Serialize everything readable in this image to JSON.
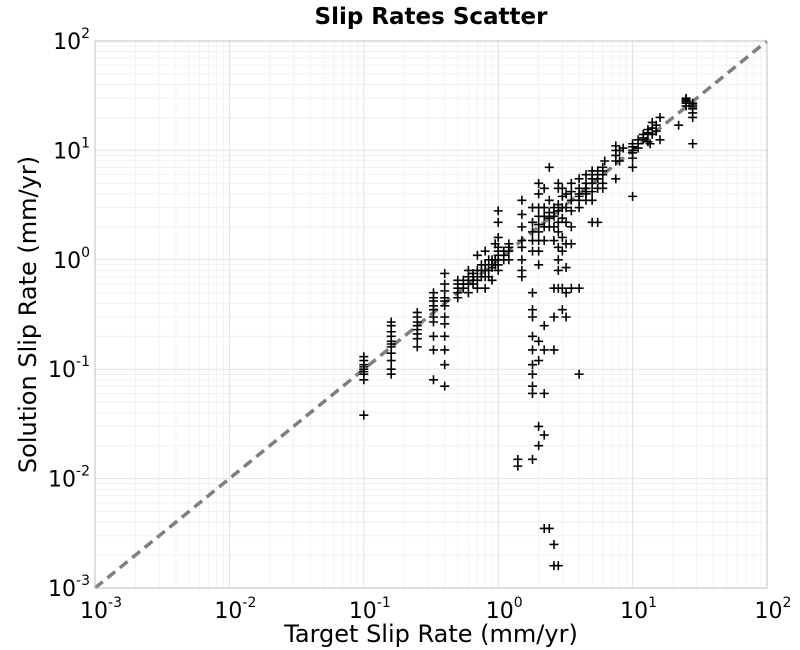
{
  "chart_data": {
    "type": "scatter",
    "title": "Slip Rates Scatter",
    "xlabel": "Target Slip Rate (mm/yr)",
    "ylabel": "Solution Slip Rate (mm/yr)",
    "xscale": "log",
    "yscale": "log",
    "xlim": [
      0.001,
      100
    ],
    "ylim": [
      0.001,
      100
    ],
    "grid": true,
    "marker": "+",
    "marker_color": "#000000",
    "reference_line": {
      "from": [
        0.001,
        0.001
      ],
      "to": [
        100,
        100
      ],
      "style": "dashed",
      "color": "#7f7f7f"
    },
    "x_ticks": [
      {
        "base": "10",
        "exp": "-3"
      },
      {
        "base": "10",
        "exp": "-2"
      },
      {
        "base": "10",
        "exp": "-1"
      },
      {
        "base": "10",
        "exp": "0"
      },
      {
        "base": "10",
        "exp": "1"
      },
      {
        "base": "10",
        "exp": "2"
      }
    ],
    "y_ticks": [
      {
        "base": "10",
        "exp": "-3"
      },
      {
        "base": "10",
        "exp": "-2"
      },
      {
        "base": "10",
        "exp": "-1"
      },
      {
        "base": "10",
        "exp": "0"
      },
      {
        "base": "10",
        "exp": "1"
      },
      {
        "base": "10",
        "exp": "2"
      }
    ],
    "points": [
      [
        0.1,
        0.038
      ],
      [
        0.1,
        0.08
      ],
      [
        0.1,
        0.09
      ],
      [
        0.1,
        0.1
      ],
      [
        0.1,
        0.11
      ],
      [
        0.1,
        0.12
      ],
      [
        0.1,
        0.13
      ],
      [
        0.1,
        0.095
      ],
      [
        0.1,
        0.105
      ],
      [
        0.16,
        0.09
      ],
      [
        0.16,
        0.1
      ],
      [
        0.16,
        0.12
      ],
      [
        0.16,
        0.14
      ],
      [
        0.16,
        0.16
      ],
      [
        0.16,
        0.17
      ],
      [
        0.16,
        0.18
      ],
      [
        0.16,
        0.2
      ],
      [
        0.16,
        0.22
      ],
      [
        0.16,
        0.25
      ],
      [
        0.16,
        0.27
      ],
      [
        0.25,
        0.16
      ],
      [
        0.25,
        0.19
      ],
      [
        0.25,
        0.21
      ],
      [
        0.25,
        0.23
      ],
      [
        0.25,
        0.25
      ],
      [
        0.25,
        0.27
      ],
      [
        0.25,
        0.3
      ],
      [
        0.25,
        0.33
      ],
      [
        0.33,
        0.08
      ],
      [
        0.33,
        0.15
      ],
      [
        0.33,
        0.2
      ],
      [
        0.33,
        0.27
      ],
      [
        0.33,
        0.3
      ],
      [
        0.33,
        0.35
      ],
      [
        0.33,
        0.38
      ],
      [
        0.33,
        0.42
      ],
      [
        0.33,
        0.45
      ],
      [
        0.33,
        0.5
      ],
      [
        0.4,
        0.07
      ],
      [
        0.4,
        0.11
      ],
      [
        0.4,
        0.15
      ],
      [
        0.4,
        0.2
      ],
      [
        0.4,
        0.26
      ],
      [
        0.4,
        0.3
      ],
      [
        0.4,
        0.38
      ],
      [
        0.4,
        0.42
      ],
      [
        0.4,
        0.45
      ],
      [
        0.4,
        0.52
      ],
      [
        0.4,
        0.6
      ],
      [
        0.4,
        0.75
      ],
      [
        0.5,
        0.45
      ],
      [
        0.5,
        0.5
      ],
      [
        0.5,
        0.55
      ],
      [
        0.5,
        0.6
      ],
      [
        0.5,
        0.65
      ],
      [
        0.55,
        0.55
      ],
      [
        0.55,
        0.6
      ],
      [
        0.55,
        0.65
      ],
      [
        0.6,
        0.5
      ],
      [
        0.6,
        0.6
      ],
      [
        0.6,
        0.65
      ],
      [
        0.6,
        0.7
      ],
      [
        0.6,
        0.8
      ],
      [
        0.65,
        0.6
      ],
      [
        0.65,
        0.7
      ],
      [
        0.65,
        0.75
      ],
      [
        0.7,
        0.55
      ],
      [
        0.7,
        0.65
      ],
      [
        0.7,
        0.7
      ],
      [
        0.7,
        0.8
      ],
      [
        0.7,
        1.1
      ],
      [
        0.75,
        0.7
      ],
      [
        0.75,
        0.8
      ],
      [
        0.75,
        0.9
      ],
      [
        0.8,
        0.55
      ],
      [
        0.8,
        0.7
      ],
      [
        0.8,
        0.8
      ],
      [
        0.8,
        0.9
      ],
      [
        0.8,
        1.2
      ],
      [
        0.85,
        0.7
      ],
      [
        0.85,
        0.8
      ],
      [
        0.85,
        1.0
      ],
      [
        0.9,
        0.65
      ],
      [
        0.9,
        0.85
      ],
      [
        0.9,
        0.9
      ],
      [
        0.9,
        1.0
      ],
      [
        0.95,
        0.9
      ],
      [
        0.95,
        1.0
      ],
      [
        0.95,
        1.4
      ],
      [
        1.0,
        0.8
      ],
      [
        1.0,
        0.9
      ],
      [
        1.0,
        1.0
      ],
      [
        1.0,
        1.1
      ],
      [
        1.0,
        1.2
      ],
      [
        1.0,
        1.3
      ],
      [
        1.0,
        1.6
      ],
      [
        1.0,
        2.2
      ],
      [
        1.0,
        2.8
      ],
      [
        1.1,
        1.0
      ],
      [
        1.1,
        1.1
      ],
      [
        1.1,
        1.2
      ],
      [
        1.2,
        1.0
      ],
      [
        1.2,
        1.2
      ],
      [
        1.2,
        1.3
      ],
      [
        1.2,
        1.4
      ],
      [
        1.5,
        0.7
      ],
      [
        1.5,
        0.8
      ],
      [
        1.5,
        1.0
      ],
      [
        1.5,
        1.3
      ],
      [
        1.5,
        1.5
      ],
      [
        1.5,
        2.0
      ],
      [
        1.5,
        2.6
      ],
      [
        1.5,
        3.5
      ],
      [
        1.4,
        0.015
      ],
      [
        1.4,
        0.013
      ],
      [
        1.8,
        0.07
      ],
      [
        1.8,
        0.09
      ],
      [
        1.8,
        0.11
      ],
      [
        1.8,
        0.15
      ],
      [
        1.8,
        0.2
      ],
      [
        1.8,
        0.3
      ],
      [
        1.8,
        0.35
      ],
      [
        1.8,
        0.5
      ],
      [
        1.8,
        1.2
      ],
      [
        1.8,
        1.5
      ],
      [
        1.8,
        1.8
      ],
      [
        1.8,
        2.2
      ],
      [
        1.8,
        3.0
      ],
      [
        1.8,
        0.015
      ],
      [
        1.8,
        0.06
      ],
      [
        2.0,
        0.9
      ],
      [
        2.0,
        1.2
      ],
      [
        2.0,
        1.5
      ],
      [
        2.0,
        1.8
      ],
      [
        2.0,
        2.1
      ],
      [
        2.0,
        2.5
      ],
      [
        2.0,
        3.0
      ],
      [
        2.0,
        4.0
      ],
      [
        2.0,
        5.0
      ],
      [
        2.0,
        0.12
      ],
      [
        2.0,
        0.18
      ],
      [
        2.0,
        0.02
      ],
      [
        2.0,
        0.03
      ],
      [
        2.2,
        0.0035
      ],
      [
        2.2,
        0.025
      ],
      [
        2.2,
        0.06
      ],
      [
        2.2,
        0.15
      ],
      [
        2.2,
        0.25
      ],
      [
        2.2,
        1.5
      ],
      [
        2.2,
        2.0
      ],
      [
        2.2,
        2.5
      ],
      [
        2.2,
        3.0
      ],
      [
        2.2,
        4.5
      ],
      [
        2.4,
        0.0035
      ],
      [
        2.4,
        2.0
      ],
      [
        2.4,
        2.4
      ],
      [
        2.4,
        2.7
      ],
      [
        2.4,
        3.5
      ],
      [
        2.4,
        7.0
      ],
      [
        2.6,
        0.0025
      ],
      [
        2.6,
        0.0016
      ],
      [
        2.6,
        0.15
      ],
      [
        2.6,
        0.3
      ],
      [
        2.6,
        0.55
      ],
      [
        2.6,
        1.5
      ],
      [
        2.6,
        2.0
      ],
      [
        2.6,
        2.5
      ],
      [
        2.6,
        3.0
      ],
      [
        2.8,
        0.0016
      ],
      [
        2.8,
        0.55
      ],
      [
        2.8,
        0.8
      ],
      [
        2.8,
        1.0
      ],
      [
        2.8,
        1.3
      ],
      [
        2.8,
        1.8
      ],
      [
        2.8,
        2.2
      ],
      [
        2.8,
        2.8
      ],
      [
        2.8,
        3.2
      ],
      [
        2.8,
        4.5
      ],
      [
        2.8,
        5.0
      ],
      [
        3.0,
        0.35
      ],
      [
        3.0,
        0.55
      ],
      [
        3.0,
        1.2
      ],
      [
        3.0,
        1.6
      ],
      [
        3.0,
        2.4
      ],
      [
        3.0,
        3.0
      ],
      [
        3.0,
        3.8
      ],
      [
        3.0,
        4.5
      ],
      [
        3.2,
        0.3
      ],
      [
        3.2,
        0.5
      ],
      [
        3.2,
        0.85
      ],
      [
        3.2,
        1.4
      ],
      [
        3.2,
        2.2
      ],
      [
        3.2,
        3.0
      ],
      [
        3.2,
        4.0
      ],
      [
        3.5,
        1.4
      ],
      [
        3.5,
        2.0
      ],
      [
        3.5,
        2.8
      ],
      [
        3.5,
        3.5
      ],
      [
        3.5,
        4.2
      ],
      [
        3.5,
        5.0
      ],
      [
        3.5,
        0.55
      ],
      [
        4.0,
        0.09
      ],
      [
        4.0,
        0.55
      ],
      [
        4.0,
        3.0
      ],
      [
        4.0,
        3.5
      ],
      [
        4.0,
        3.8
      ],
      [
        4.0,
        4.0
      ],
      [
        4.0,
        4.5
      ],
      [
        4.0,
        5.5
      ],
      [
        4.5,
        3.5
      ],
      [
        4.5,
        4.0
      ],
      [
        4.5,
        4.5
      ],
      [
        4.5,
        5.0
      ],
      [
        4.5,
        6.0
      ],
      [
        4.5,
        4.2
      ],
      [
        5.0,
        2.2
      ],
      [
        5.0,
        3.5
      ],
      [
        5.0,
        4.2
      ],
      [
        5.0,
        5.0
      ],
      [
        5.0,
        5.5
      ],
      [
        5.0,
        6.0
      ],
      [
        5.0,
        6.5
      ],
      [
        5.5,
        4.5
      ],
      [
        5.5,
        5.5
      ],
      [
        5.5,
        6.0
      ],
      [
        5.5,
        6.5
      ],
      [
        5.5,
        2.2
      ],
      [
        6.0,
        4.5
      ],
      [
        6.0,
        5.0
      ],
      [
        6.0,
        6.0
      ],
      [
        6.0,
        6.5
      ],
      [
        6.0,
        7.0
      ],
      [
        6.2,
        8.0
      ],
      [
        7.5,
        5.5
      ],
      [
        7.5,
        8.0
      ],
      [
        7.5,
        9.0
      ],
      [
        7.5,
        10.0
      ],
      [
        7.5,
        11.0
      ],
      [
        8.0,
        8.0
      ],
      [
        8.0,
        10.0
      ],
      [
        8.5,
        10.5
      ],
      [
        10.0,
        3.8
      ],
      [
        10.0,
        7.0
      ],
      [
        10.0,
        8.5
      ],
      [
        10.0,
        9.5
      ],
      [
        10.0,
        10.0
      ],
      [
        10.0,
        10.8
      ],
      [
        10.0,
        11.5
      ],
      [
        11.0,
        10.5
      ],
      [
        11.0,
        11.5
      ],
      [
        11.0,
        12.5
      ],
      [
        12.0,
        12.5
      ],
      [
        12.0,
        13.0
      ],
      [
        12.0,
        14.0
      ],
      [
        13.0,
        12.0
      ],
      [
        13.0,
        14.5
      ],
      [
        13.0,
        15.5
      ],
      [
        13.5,
        11.5
      ],
      [
        14.0,
        14.0
      ],
      [
        14.0,
        16.0
      ],
      [
        14.0,
        18.0
      ],
      [
        15.0,
        15.0
      ],
      [
        15.0,
        17.0
      ],
      [
        16.0,
        12.5
      ],
      [
        16.0,
        20.0
      ],
      [
        22.0,
        17.0
      ],
      [
        25.0,
        27.0
      ],
      [
        25.0,
        28.0
      ],
      [
        25.0,
        29.0
      ],
      [
        25.0,
        30.0
      ],
      [
        25.0,
        25.5
      ],
      [
        28.0,
        20.0
      ],
      [
        28.0,
        22.0
      ],
      [
        28.0,
        24.0
      ],
      [
        28.0,
        25.0
      ],
      [
        28.0,
        26.0
      ],
      [
        28.0,
        27.0
      ],
      [
        28.0,
        11.5
      ]
    ]
  }
}
